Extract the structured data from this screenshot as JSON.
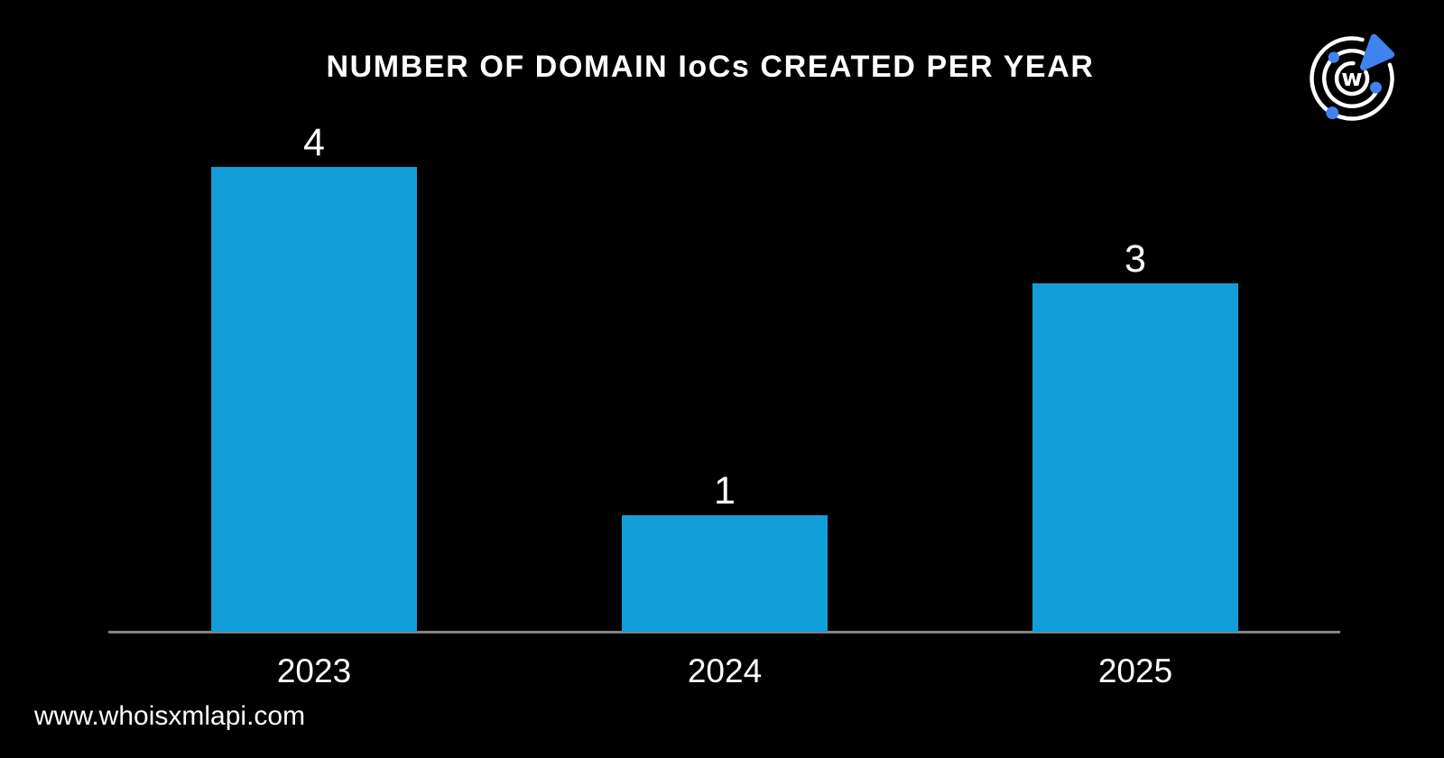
{
  "page": {
    "background": "#000000"
  },
  "chart_data": {
    "type": "bar",
    "title": "NUMBER OF DOMAIN IoCs CREATED PER YEAR",
    "categories": [
      "2023",
      "2024",
      "2025"
    ],
    "values": [
      4,
      1,
      3
    ],
    "ylim": [
      0,
      4
    ],
    "xlabel": "",
    "ylabel": "",
    "grid": false,
    "legend": "none",
    "show_data_labels": true,
    "bar_color": "#129ED8",
    "axis_color": "#828282",
    "text_color": "#FFFFFF",
    "background": "#000000"
  },
  "footer": {
    "url": "www.whoisxmlapi.com"
  },
  "logo": {
    "letter": "w",
    "accent_color": "#3F83F0",
    "ring_color": "#FFFFFF"
  }
}
